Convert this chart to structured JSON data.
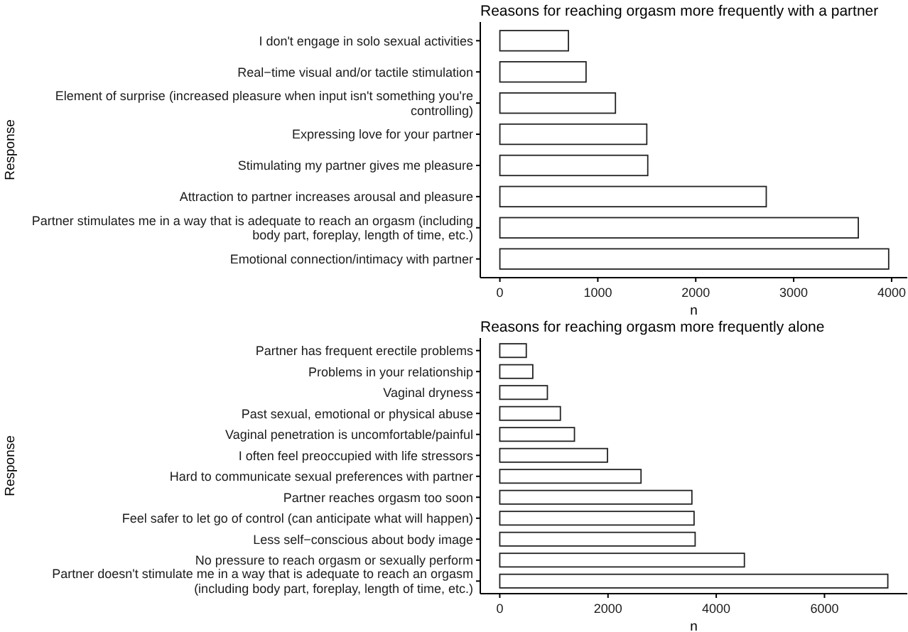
{
  "chart_data": [
    {
      "type": "bar",
      "orientation": "horizontal",
      "title": "Reasons for reaching orgasm more frequently with a partner",
      "xlabel": "n",
      "ylabel": "Response",
      "categories": [
        "I don't engage in solo sexual activities",
        "Real−time visual and/or tactile stimulation",
        "Element of surprise (increased pleasure when input isn't something you're controlling)",
        "Expressing love for your partner",
        "Stimulating my partner gives me pleasure",
        "Attraction to partner increases arousal and pleasure",
        "Partner stimulates me in a way that is adequate to reach an orgasm (including body part, foreplay, length of time, etc.)",
        "Emotional connection/intimacy with partner"
      ],
      "values": [
        700,
        880,
        1180,
        1500,
        1510,
        2720,
        3660,
        3970
      ],
      "color": "#ffffff",
      "xlim": [
        -200,
        4160
      ],
      "xticks": [
        0,
        1000,
        2000,
        3000,
        4000
      ]
    },
    {
      "type": "bar",
      "orientation": "horizontal",
      "title": "Reasons for reaching orgasm more frequently alone",
      "xlabel": "n",
      "ylabel": "Response",
      "categories": [
        "Partner has frequent erectile problems",
        "Problems in your relationship",
        "Vaginal dryness",
        "Past sexual, emotional or physical abuse",
        "Vaginal penetration is uncomfortable/painful",
        "I often feel preoccupied with life stressors",
        "Hard to communicate sexual preferences with partner",
        "Partner reaches orgasm too soon",
        "Feel safer to let go of control (can anticipate what will happen)",
        "Less self−conscious about body image",
        "No pressure to reach orgasm or sexually perform",
        "Partner doesn't stimulate me in a way that is adequate to reach an orgasm (including body part, foreplay, length of time, etc.)"
      ],
      "values": [
        490,
        610,
        880,
        1120,
        1380,
        1990,
        2610,
        3550,
        3590,
        3610,
        4520,
        7170
      ],
      "color": "#ffffff",
      "xlim": [
        -360,
        7530
      ],
      "xticks": [
        0,
        2000,
        4000,
        6000
      ]
    }
  ]
}
